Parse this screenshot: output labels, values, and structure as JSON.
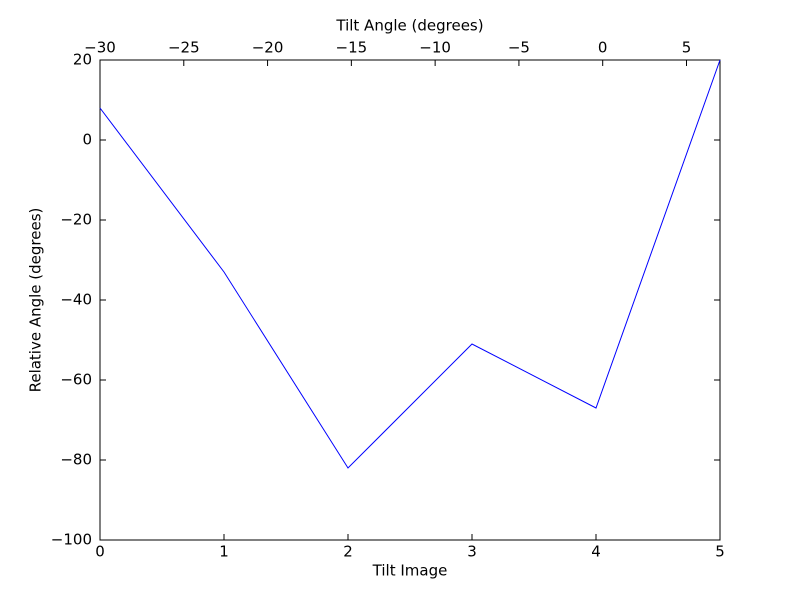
{
  "chart_data": {
    "type": "line",
    "xlabel": "Tilt Image",
    "ylabel": "Relative Angle (degrees)",
    "x2label": "Tilt Angle (degrees)",
    "x": [
      0,
      1,
      2,
      3,
      4,
      5
    ],
    "series": [
      {
        "color": "#0000ff",
        "values": [
          8,
          -33,
          -82,
          -51,
          -67,
          20
        ]
      }
    ],
    "xlim": [
      0,
      5
    ],
    "xticks": [
      0,
      1,
      2,
      3,
      4,
      5
    ],
    "ylim": [
      -100,
      20
    ],
    "yticks": [
      {
        "value": -100,
        "label": "−100"
      },
      {
        "value": -80,
        "label": "−80"
      },
      {
        "value": -60,
        "label": "−60"
      },
      {
        "value": -40,
        "label": "−40"
      },
      {
        "value": -20,
        "label": "−20"
      },
      0,
      20
    ],
    "x2lim": [
      -30,
      7
    ],
    "x2ticks": [
      {
        "value": -30,
        "label": "−30"
      },
      {
        "value": -25,
        "label": "−25"
      },
      {
        "value": -20,
        "label": "−20"
      },
      {
        "value": -15,
        "label": "−15"
      },
      {
        "value": -10,
        "label": "−10"
      },
      {
        "value": -5,
        "label": "−5"
      },
      0,
      5
    ],
    "grid": false
  }
}
